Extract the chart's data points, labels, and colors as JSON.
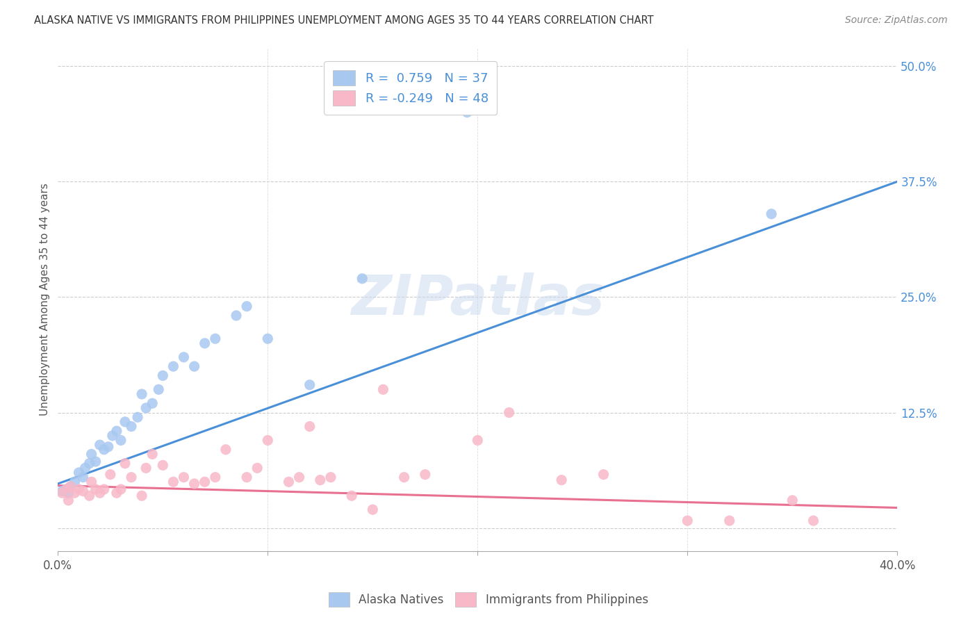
{
  "title": "ALASKA NATIVE VS IMMIGRANTS FROM PHILIPPINES UNEMPLOYMENT AMONG AGES 35 TO 44 YEARS CORRELATION CHART",
  "source": "Source: ZipAtlas.com",
  "ylabel": "Unemployment Among Ages 35 to 44 years",
  "xlim": [
    0.0,
    0.4
  ],
  "ylim": [
    -0.025,
    0.52
  ],
  "x_ticks": [
    0.0,
    0.1,
    0.2,
    0.3,
    0.4
  ],
  "x_tick_labels": [
    "0.0%",
    "",
    "",
    "",
    "40.0%"
  ],
  "y_ticks_right": [
    0.0,
    0.125,
    0.25,
    0.375,
    0.5
  ],
  "y_tick_labels_right": [
    "",
    "12.5%",
    "25.0%",
    "37.5%",
    "50.0%"
  ],
  "blue_R": 0.759,
  "blue_N": 37,
  "pink_R": -0.249,
  "pink_N": 48,
  "blue_color": "#A8C8F0",
  "pink_color": "#F8B8C8",
  "blue_line_color": "#4A90D9",
  "pink_line_color": "#E87090",
  "watermark": "ZIPatlas",
  "legend_labels": [
    "Alaska Natives",
    "Immigrants from Philippines"
  ],
  "blue_line_x0": 0.0,
  "blue_line_y0": 0.048,
  "blue_line_x1": 0.4,
  "blue_line_y1": 0.375,
  "pink_line_x0": 0.0,
  "pink_line_y0": 0.046,
  "pink_line_x1": 0.4,
  "pink_line_y1": 0.022,
  "blue_scatter_x": [
    0.002,
    0.004,
    0.005,
    0.006,
    0.008,
    0.01,
    0.012,
    0.013,
    0.015,
    0.016,
    0.018,
    0.02,
    0.022,
    0.024,
    0.026,
    0.028,
    0.03,
    0.032,
    0.035,
    0.038,
    0.04,
    0.042,
    0.045,
    0.048,
    0.05,
    0.055,
    0.06,
    0.065,
    0.07,
    0.075,
    0.085,
    0.09,
    0.1,
    0.12,
    0.145,
    0.195,
    0.34
  ],
  "blue_scatter_y": [
    0.04,
    0.042,
    0.038,
    0.045,
    0.05,
    0.06,
    0.055,
    0.065,
    0.07,
    0.08,
    0.072,
    0.09,
    0.085,
    0.088,
    0.1,
    0.105,
    0.095,
    0.115,
    0.11,
    0.12,
    0.145,
    0.13,
    0.135,
    0.15,
    0.165,
    0.175,
    0.185,
    0.175,
    0.2,
    0.205,
    0.23,
    0.24,
    0.205,
    0.155,
    0.27,
    0.45,
    0.34
  ],
  "pink_scatter_x": [
    0.002,
    0.004,
    0.005,
    0.006,
    0.008,
    0.01,
    0.012,
    0.015,
    0.016,
    0.018,
    0.02,
    0.022,
    0.025,
    0.028,
    0.03,
    0.032,
    0.035,
    0.04,
    0.042,
    0.045,
    0.05,
    0.055,
    0.06,
    0.065,
    0.07,
    0.075,
    0.08,
    0.09,
    0.095,
    0.1,
    0.11,
    0.115,
    0.12,
    0.125,
    0.13,
    0.14,
    0.15,
    0.155,
    0.165,
    0.175,
    0.2,
    0.215,
    0.24,
    0.26,
    0.3,
    0.32,
    0.35,
    0.36
  ],
  "pink_scatter_y": [
    0.038,
    0.042,
    0.03,
    0.045,
    0.038,
    0.042,
    0.04,
    0.035,
    0.05,
    0.042,
    0.038,
    0.042,
    0.058,
    0.038,
    0.042,
    0.07,
    0.055,
    0.035,
    0.065,
    0.08,
    0.068,
    0.05,
    0.055,
    0.048,
    0.05,
    0.055,
    0.085,
    0.055,
    0.065,
    0.095,
    0.05,
    0.055,
    0.11,
    0.052,
    0.055,
    0.035,
    0.02,
    0.15,
    0.055,
    0.058,
    0.095,
    0.125,
    0.052,
    0.058,
    0.008,
    0.008,
    0.03,
    0.008
  ]
}
